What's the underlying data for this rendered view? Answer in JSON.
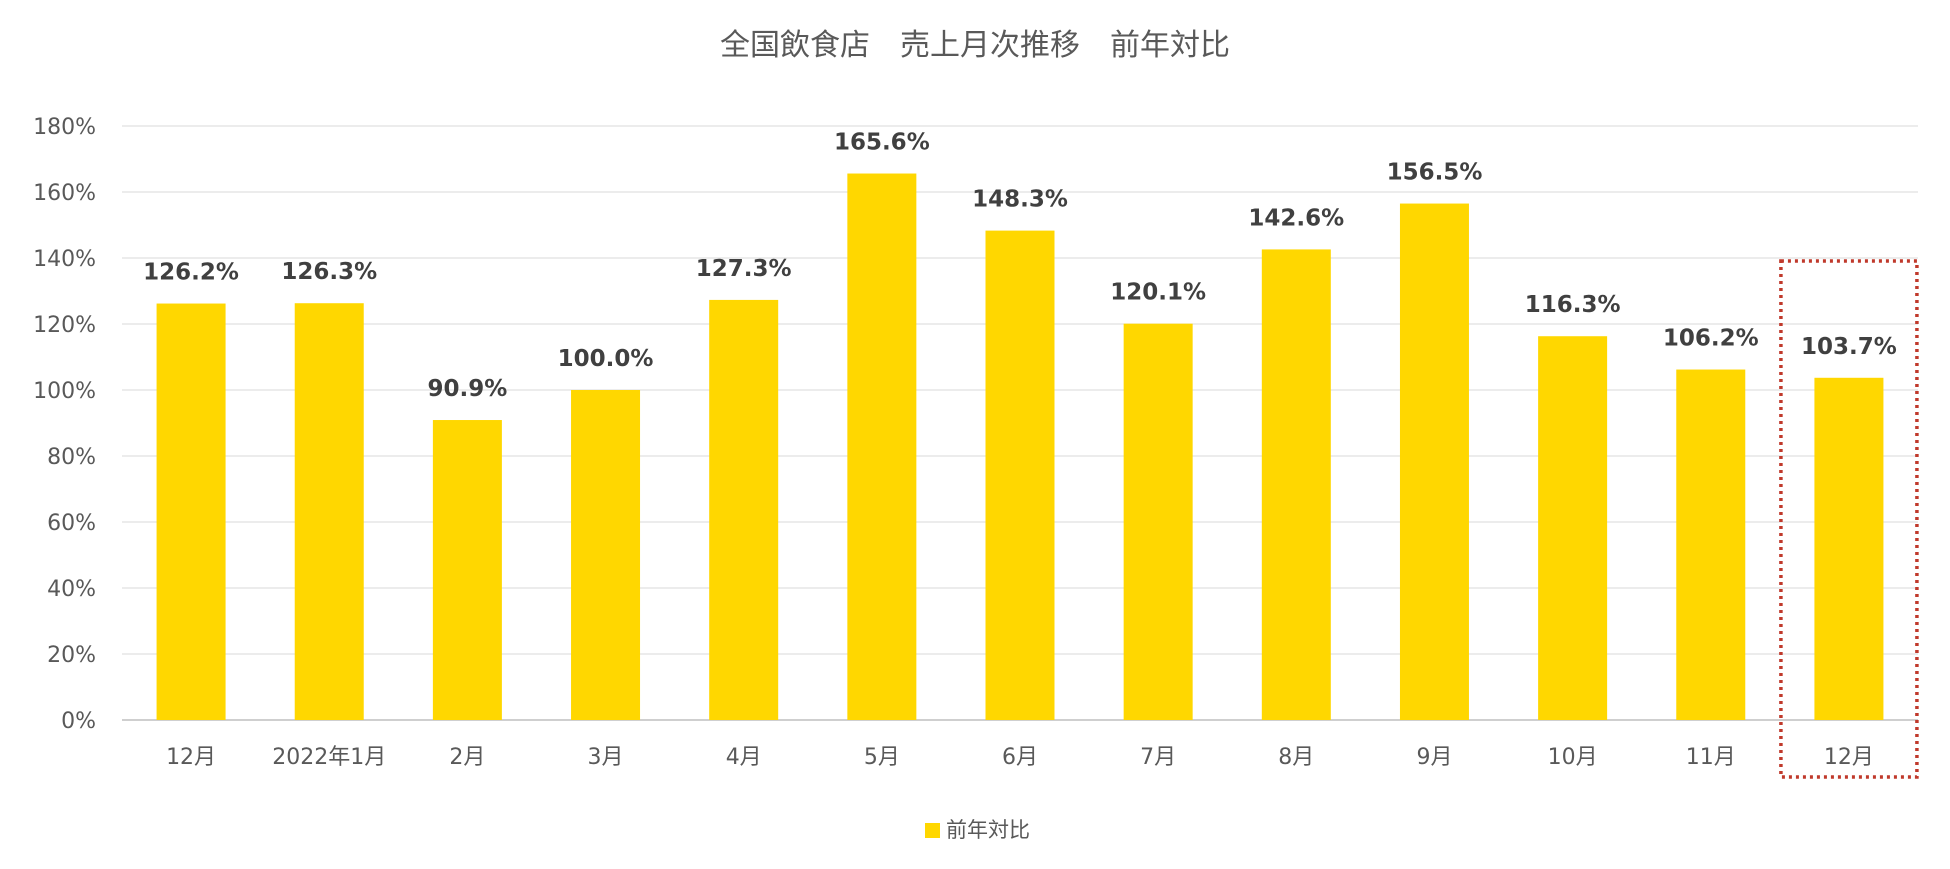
{
  "chart_data": {
    "type": "bar",
    "title": "全国飲食店　売上月次推移　前年対比",
    "categories": [
      "12月",
      "2022年1月",
      "2月",
      "3月",
      "4月",
      "5月",
      "6月",
      "7月",
      "8月",
      "9月",
      "10月",
      "11月",
      "12月"
    ],
    "series": [
      {
        "name": "前年対比",
        "values": [
          126.2,
          126.3,
          90.9,
          100.0,
          127.3,
          165.6,
          148.3,
          120.1,
          142.6,
          156.5,
          116.3,
          106.2,
          103.7
        ],
        "labels": [
          "126.2%",
          "126.3%",
          "90.9%",
          "100.0%",
          "127.3%",
          "165.6%",
          "148.3%",
          "120.1%",
          "142.6%",
          "156.5%",
          "116.3%",
          "106.2%",
          "103.7%"
        ],
        "color": "#FFD700"
      }
    ],
    "yticks": [
      "0%",
      "20%",
      "40%",
      "60%",
      "80%",
      "100%",
      "120%",
      "140%",
      "160%",
      "180%"
    ],
    "ylim": [
      0,
      180
    ],
    "grid": true,
    "legend_position": "bottom",
    "highlight": {
      "category_index": 12,
      "style": "dotted-box",
      "color": "#C0392B"
    },
    "xlabel": "",
    "ylabel": ""
  }
}
